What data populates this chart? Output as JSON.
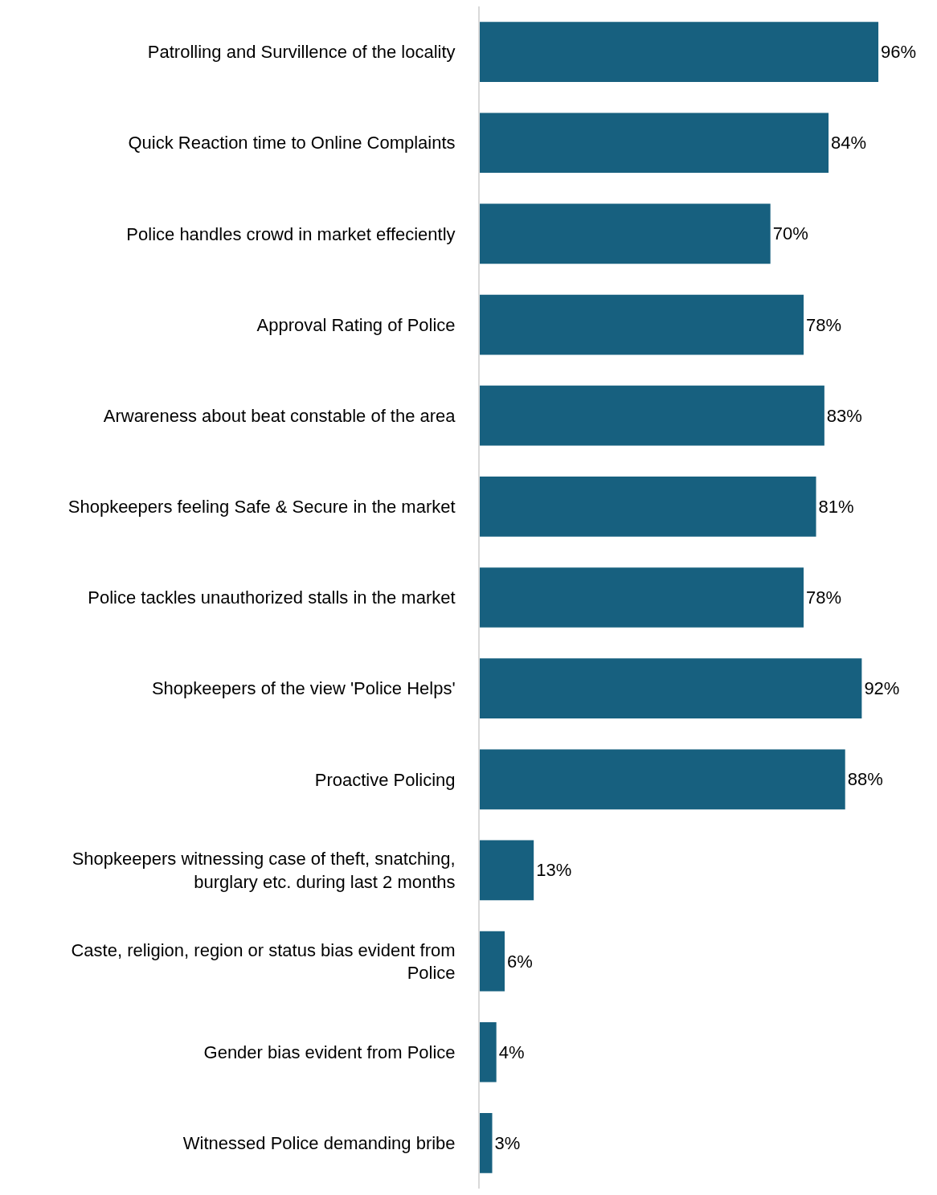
{
  "chart_data": {
    "type": "bar",
    "orientation": "horizontal",
    "categories": [
      "Patrolling and Survillence of the locality",
      "Quick Reaction time to Online Complaints",
      "Police handles crowd in market effeciently",
      "Approval Rating of Police",
      "Arwareness about beat constable of the area",
      "Shopkeepers feeling Safe & Secure in the market",
      "Police tackles unauthorized stalls in the market",
      "Shopkeepers of the view 'Police Helps'",
      "Proactive Policing",
      "Shopkeepers witnessing case of theft, snatching,\nburglary etc. during last 2 months",
      "Caste, religion, region or status bias evident from\nPolice",
      "Gender bias evident from Police",
      "Witnessed Police demanding bribe"
    ],
    "values": [
      96,
      84,
      70,
      78,
      83,
      81,
      78,
      92,
      88,
      13,
      6,
      4,
      3
    ],
    "value_labels": [
      "96%",
      "84%",
      "70%",
      "78%",
      "83%",
      "81%",
      "78%",
      "92%",
      "88%",
      "13%",
      "6%",
      "4%",
      "3%"
    ],
    "color": "#17607f",
    "grid": false,
    "legend": false
  }
}
